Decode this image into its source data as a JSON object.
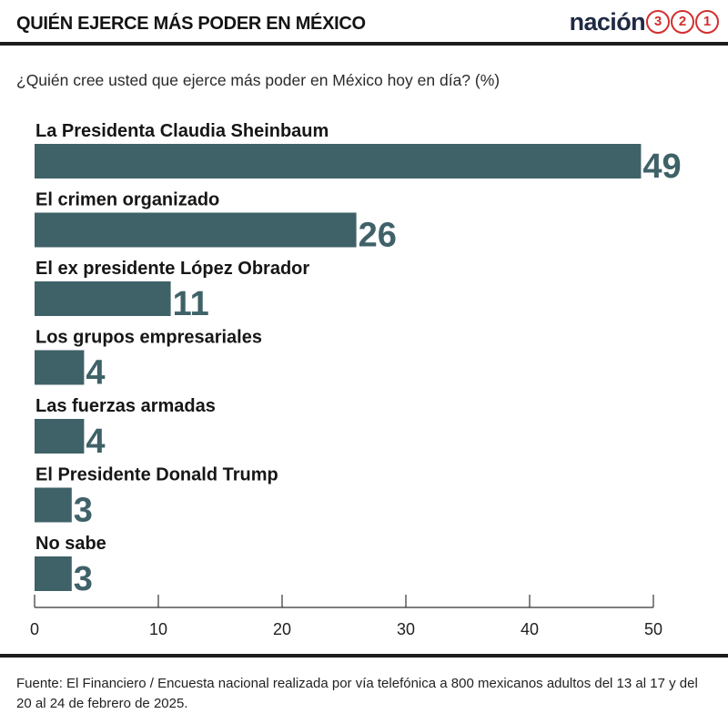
{
  "header": {
    "title": "QUIÉN EJERCE MÁS PODER EN MÉXICO",
    "brand_word": "nación",
    "brand_numbers": [
      "3",
      "2",
      "1"
    ]
  },
  "colors": {
    "bar": "#3f6168",
    "brand_red": "#d32f2f",
    "brand_navy": "#1f2a44"
  },
  "chart_data": {
    "type": "bar",
    "orientation": "horizontal",
    "title": "QUIÉN EJERCE MÁS PODER EN MÉXICO",
    "subtitle": "¿Quién cree usted que ejerce más poder en México hoy en día? (%)",
    "categories": [
      "La Presidenta Claudia Sheinbaum",
      "El crimen organizado",
      "El ex presidente López Obrador",
      "Los grupos empresariales",
      "Las fuerzas armadas",
      "El Presidente Donald Trump",
      "No sabe"
    ],
    "values": [
      49,
      26,
      11,
      4,
      4,
      3,
      3
    ],
    "xlim": [
      0,
      50
    ],
    "xticks": [
      0,
      10,
      20,
      30,
      40,
      50
    ],
    "xlabel": "",
    "ylabel": "",
    "grid": false,
    "legend": "none"
  },
  "footer": {
    "source": "Fuente: El Financiero / Encuesta nacional realizada por vía telefónica a 800 mexicanos adultos del 13 al 17 y del 20 al 24 de febrero de 2025."
  }
}
